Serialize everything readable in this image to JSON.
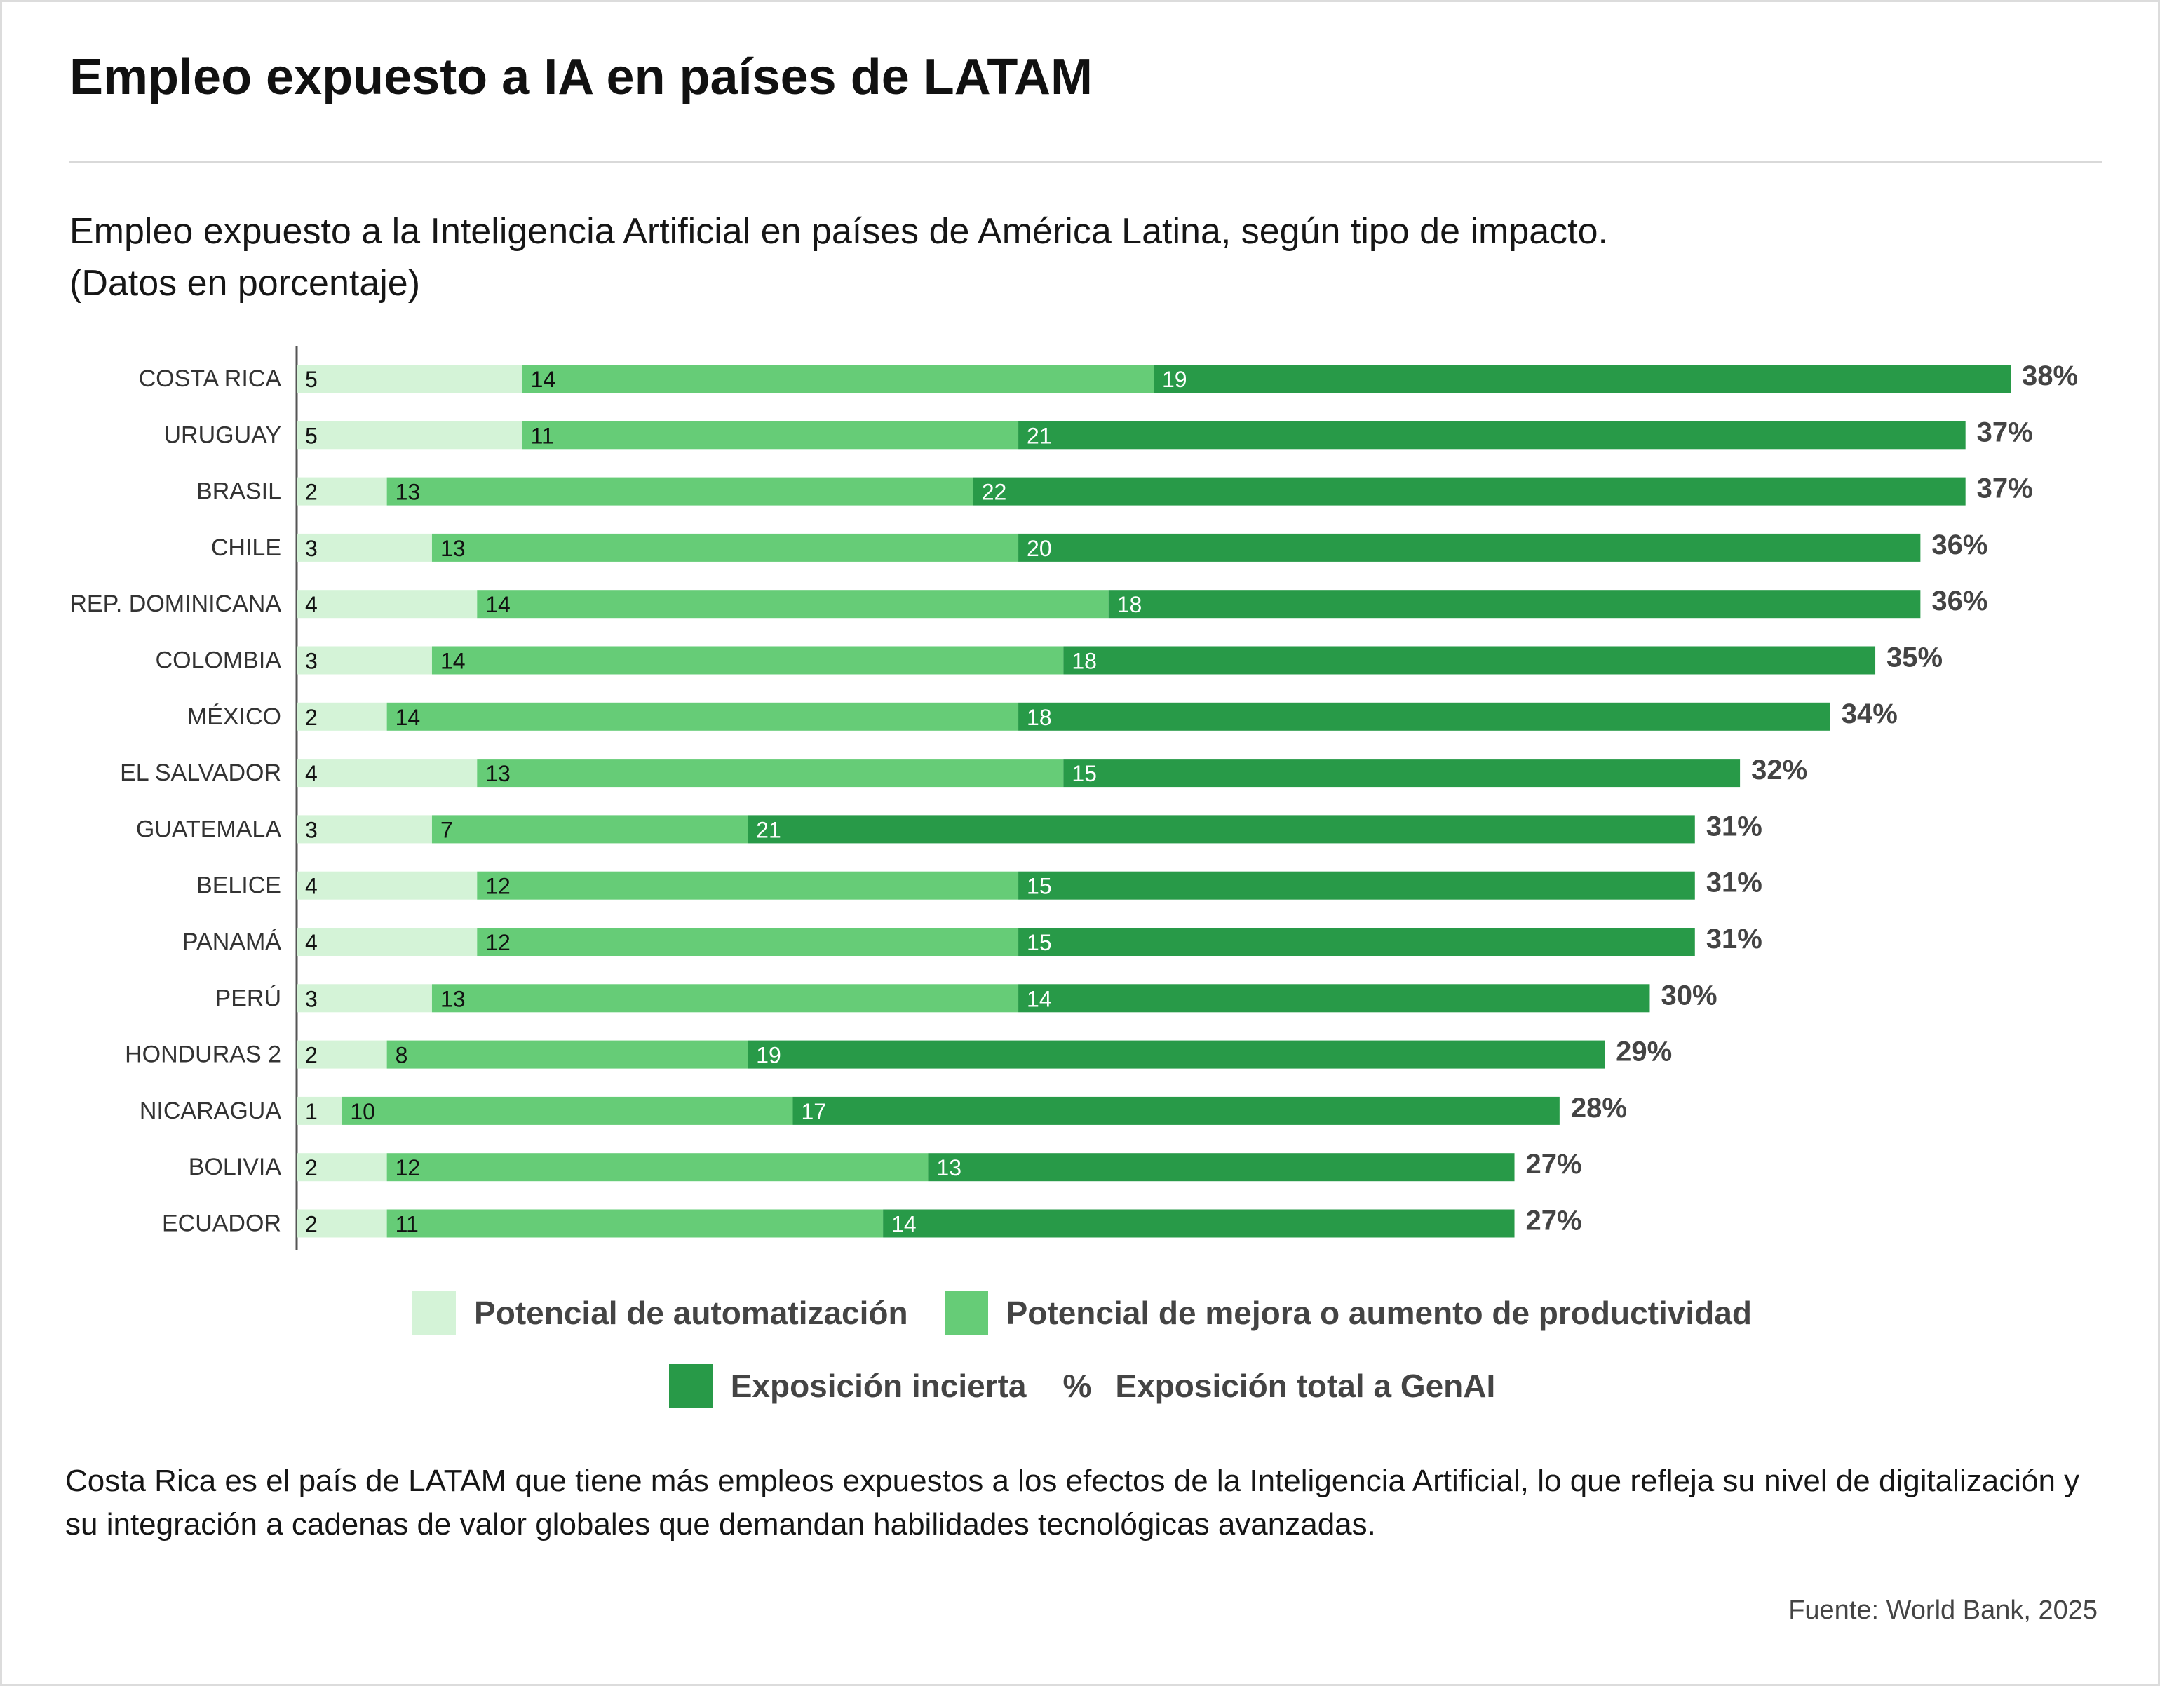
{
  "header": {
    "title": "Empleo expuesto a IA en países de LATAM",
    "subtitle_line1": "Empleo expuesto a la Inteligencia Artificial en países de América Latina, según tipo de impacto.",
    "subtitle_line2": "(Datos en porcentaje)"
  },
  "legend": {
    "automation": "Potencial de automatización",
    "augmentation": "Potencial de mejora o aumento de productividad",
    "uncertain": "Exposición incierta",
    "total_symbol": "%",
    "total": "Exposición total a GenAI"
  },
  "colors": {
    "automation": "#d4f3d7",
    "augmentation": "#66cc77",
    "uncertain": "#289a48",
    "total_text": "#444444",
    "axis": "#555555"
  },
  "note": "Costa Rica es el país de LATAM que tiene más empleos expuestos a los efectos de la Inteligencia Artificial, lo que refleja su nivel de digitalización y su integración a cadenas de valor globales que demandan habilidades tecnológicas avanzadas.",
  "source": "Fuente: World Bank, 2025",
  "chart_data": {
    "type": "bar",
    "orientation": "horizontal",
    "stacked": true,
    "categories": [
      "COSTA RICA",
      "URUGUAY",
      "BRASIL",
      "CHILE",
      "REP. DOMINICANA",
      "COLOMBIA",
      "MÉXICO",
      "EL SALVADOR",
      "GUATEMALA",
      "BELICE",
      "PANAMÁ",
      "PERÚ",
      "HONDURAS 2",
      "NICARAGUA",
      "BOLIVIA",
      "ECUADOR"
    ],
    "series": [
      {
        "name": "Potencial de automatización",
        "values": [
          5,
          5,
          2,
          3,
          4,
          3,
          2,
          4,
          3,
          4,
          4,
          3,
          2,
          1,
          2,
          2
        ]
      },
      {
        "name": "Potencial de mejora o aumento de productividad",
        "values": [
          14,
          11,
          13,
          13,
          14,
          14,
          14,
          13,
          7,
          12,
          12,
          13,
          8,
          10,
          12,
          11
        ]
      },
      {
        "name": "Exposición incierta",
        "values": [
          19,
          21,
          22,
          20,
          18,
          18,
          18,
          15,
          21,
          15,
          15,
          14,
          19,
          17,
          13,
          14
        ]
      }
    ],
    "totals": [
      "38%",
      "37%",
      "37%",
      "36%",
      "36%",
      "35%",
      "34%",
      "32%",
      "31%",
      "31%",
      "31%",
      "30%",
      "29%",
      "28%",
      "27%",
      "27%"
    ],
    "xlim": [
      0,
      38
    ],
    "grid": false,
    "legend_position": "bottom"
  }
}
